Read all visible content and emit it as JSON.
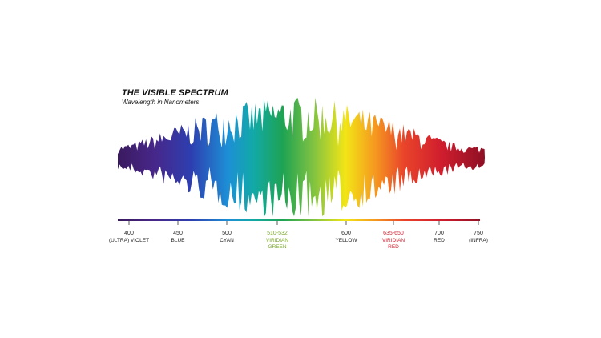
{
  "title": "THE VISIBLE SPECTRUM",
  "subtitle": "Wavelength in Nanometers",
  "scale": {
    "marks": [
      {
        "wavelength": "400",
        "name": "(ULTRA) VIOLET"
      },
      {
        "wavelength": "450",
        "name": "BLUE"
      },
      {
        "wavelength": "500",
        "name": "CYAN"
      },
      {
        "wavelength": "510-532",
        "name": "VIRIDIAN GREEN"
      },
      {
        "wavelength": "600",
        "name": "YELLOW"
      },
      {
        "wavelength": "635-650",
        "name": "VIRIDIAN RED"
      },
      {
        "wavelength": "700",
        "name": "RED"
      },
      {
        "wavelength": "750",
        "name": "(INFRA)"
      }
    ]
  }
}
